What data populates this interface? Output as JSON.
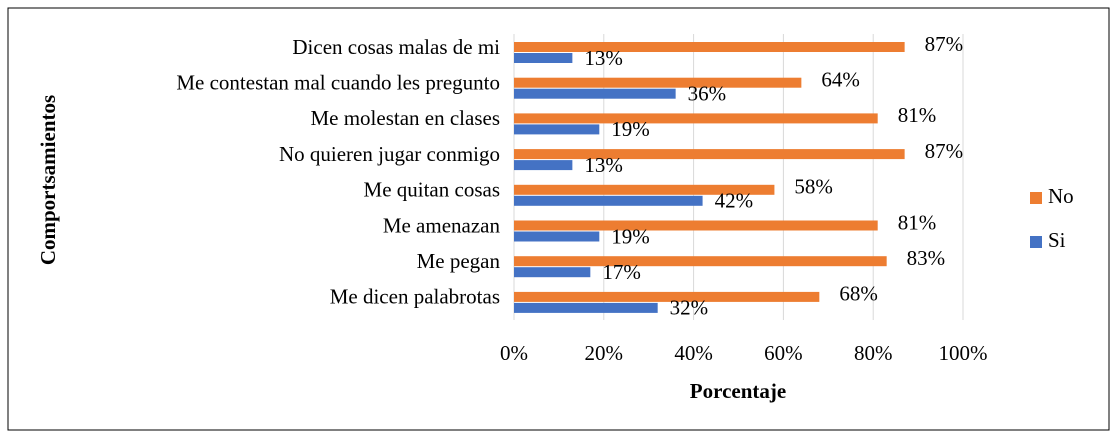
{
  "chart_data": {
    "type": "hbar",
    "x_label": "Porcentaje",
    "y_label": "Comportsamientos",
    "categories": [
      "Dicen cosas malas de mi",
      "Me contestan mal cuando les pregunto",
      "Me molestan en clases",
      "No quieren jugar conmigo",
      "Me quitan cosas",
      "Me amenazan",
      "Me pegan",
      "Me dicen palabrotas"
    ],
    "series": [
      {
        "name": "No",
        "color": "#ed7d31",
        "values": [
          87,
          64,
          81,
          87,
          58,
          81,
          83,
          68
        ],
        "value_labels": [
          "87%",
          "64%",
          "81%",
          "87%",
          "58%",
          "81%",
          "83%",
          "68%"
        ]
      },
      {
        "name": "Si",
        "color": "#4472c4",
        "values": [
          13,
          36,
          19,
          13,
          42,
          19,
          17,
          32
        ],
        "value_labels": [
          "13%",
          "36%",
          "19%",
          "13%",
          "42%",
          "19%",
          "17%",
          "32%"
        ]
      }
    ],
    "xlim": [
      0,
      100
    ],
    "xticks": [
      {
        "value": 0,
        "label": "0%"
      },
      {
        "value": 20,
        "label": "20%"
      },
      {
        "value": 40,
        "label": "40%"
      },
      {
        "value": 60,
        "label": "60%"
      },
      {
        "value": 80,
        "label": "80%"
      },
      {
        "value": 100,
        "label": "100%"
      }
    ],
    "grid": true,
    "legend": "right"
  }
}
